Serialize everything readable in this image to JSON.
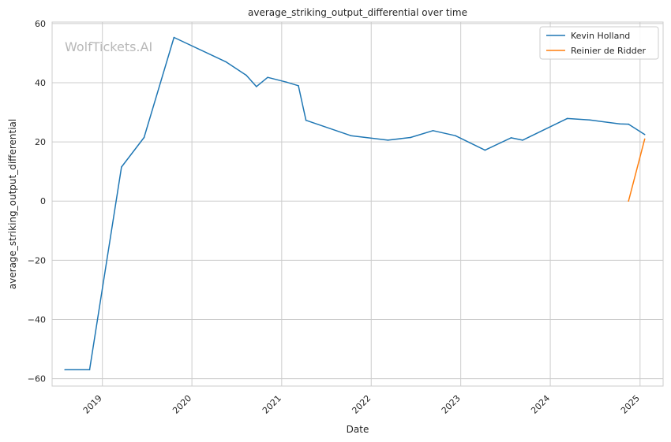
{
  "chart_data": {
    "type": "line",
    "title": "average_striking_output_differential over time",
    "xlabel": "Date",
    "ylabel": "average_striking_output_differential",
    "watermark": "WolfTickets.AI",
    "x_tick_labels": [
      "2019",
      "2020",
      "2021",
      "2022",
      "2023",
      "2024",
      "2025"
    ],
    "y_ticks": [
      -60,
      -40,
      -20,
      0,
      20,
      40,
      60
    ],
    "y_tick_labels": [
      "−60",
      "−40",
      "−20",
      "0",
      "20",
      "40",
      "60"
    ],
    "xlim": [
      "2018-06-10",
      "2025-04-05"
    ],
    "ylim": [
      -62.5,
      60.5
    ],
    "grid": true,
    "legend_position": "top-right",
    "series": [
      {
        "name": "Kevin Holland",
        "color": "#1f77b4",
        "points": [
          {
            "x": "2018-08-01",
            "y": -57
          },
          {
            "x": "2018-11-10",
            "y": -57
          },
          {
            "x": "2019-03-20",
            "y": 11.5
          },
          {
            "x": "2019-06-20",
            "y": 21.5
          },
          {
            "x": "2019-10-20",
            "y": 55.3
          },
          {
            "x": "2020-05-20",
            "y": 47
          },
          {
            "x": "2020-08-10",
            "y": 42.5
          },
          {
            "x": "2020-09-20",
            "y": 38.7
          },
          {
            "x": "2020-11-05",
            "y": 41.8
          },
          {
            "x": "2021-01-20",
            "y": 40.2
          },
          {
            "x": "2021-03-10",
            "y": 39
          },
          {
            "x": "2021-04-10",
            "y": 27.3
          },
          {
            "x": "2021-10-10",
            "y": 22.1
          },
          {
            "x": "2022-03-10",
            "y": 20.6
          },
          {
            "x": "2022-06-10",
            "y": 21.5
          },
          {
            "x": "2022-09-10",
            "y": 23.8
          },
          {
            "x": "2022-12-10",
            "y": 22.1
          },
          {
            "x": "2023-04-10",
            "y": 17.2
          },
          {
            "x": "2023-07-25",
            "y": 21.4
          },
          {
            "x": "2023-09-10",
            "y": 20.6
          },
          {
            "x": "2024-03-10",
            "y": 27.9
          },
          {
            "x": "2024-06-10",
            "y": 27.4
          },
          {
            "x": "2024-10-10",
            "y": 26.1
          },
          {
            "x": "2024-11-15",
            "y": 26
          },
          {
            "x": "2025-01-20",
            "y": 22.5
          }
        ]
      },
      {
        "name": "Reinier de Ridder",
        "color": "#ff7f0e",
        "points": [
          {
            "x": "2024-11-15",
            "y": 0
          },
          {
            "x": "2025-01-20",
            "y": 21
          }
        ]
      }
    ]
  }
}
